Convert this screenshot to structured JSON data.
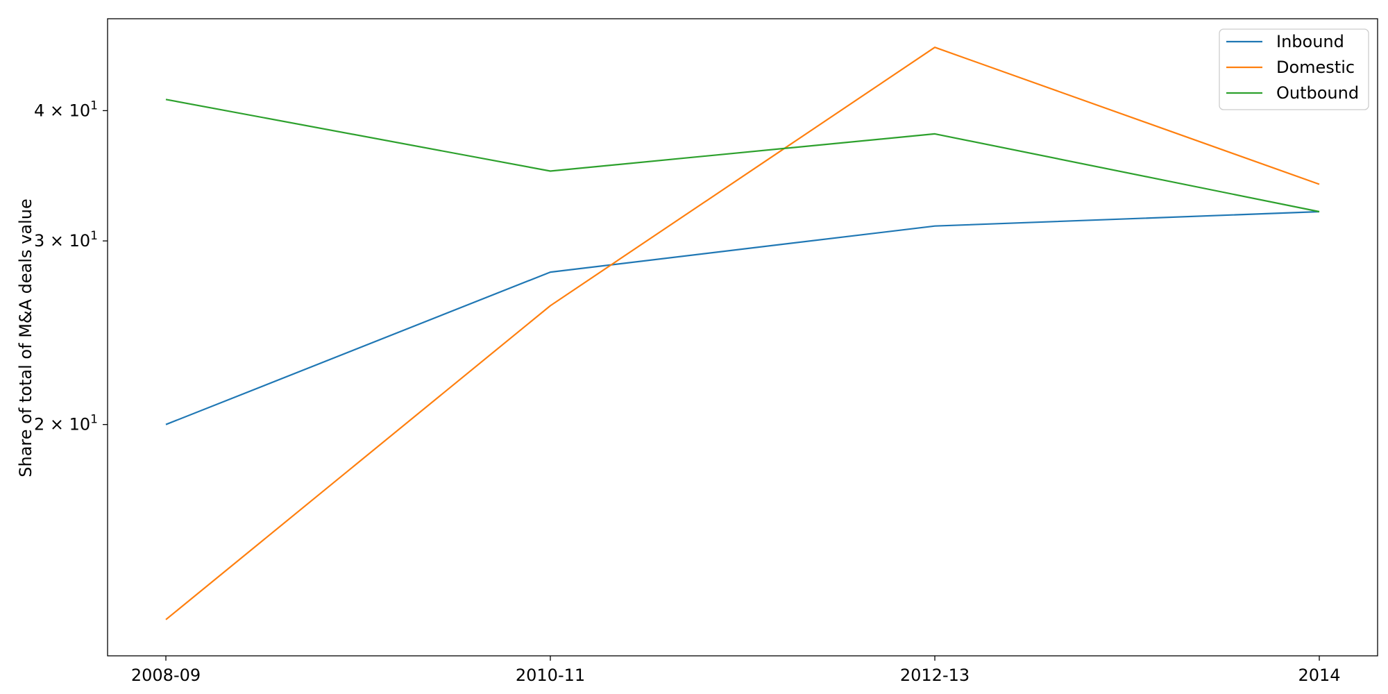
{
  "chart_data": {
    "type": "line",
    "x": [
      "2008-09",
      "2010-11",
      "2012-13",
      "2014"
    ],
    "series": [
      {
        "name": "Inbound",
        "color": "#1f77b4",
        "values": [
          20.0,
          28.0,
          31.0,
          32.0
        ]
      },
      {
        "name": "Domestic",
        "color": "#ff7f0e",
        "values": [
          13.0,
          26.0,
          46.0,
          34.0
        ]
      },
      {
        "name": "Outbound",
        "color": "#2ca02c",
        "values": [
          41.0,
          35.0,
          38.0,
          32.0
        ]
      }
    ],
    "ylabel": "Share of total of M&A deals value",
    "yscale": "log",
    "ylim": [
      12.0,
      49.0
    ],
    "yticks": [
      {
        "value": 20,
        "mantissa": "2",
        "base": "10",
        "exponent": "1"
      },
      {
        "value": 30,
        "mantissa": "3",
        "base": "10",
        "exponent": "1"
      },
      {
        "value": 40,
        "mantissa": "4",
        "base": "10",
        "exponent": "1"
      }
    ],
    "times_symbol": "×",
    "grid": false,
    "legend_position": "top-right"
  }
}
